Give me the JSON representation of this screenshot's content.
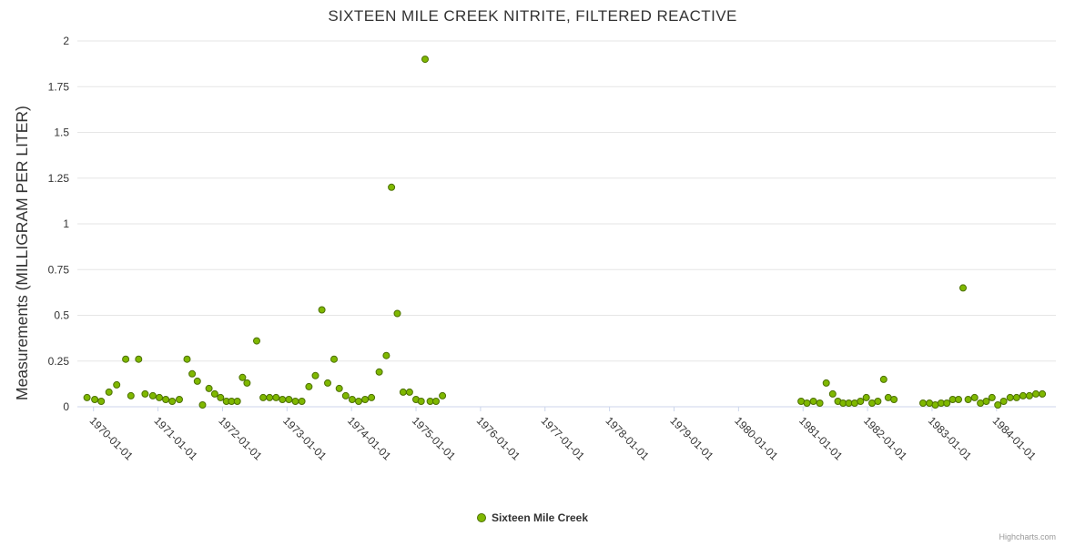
{
  "title": "SIXTEEN MILE CREEK NITRITE, FILTERED REACTIVE",
  "credit": "Highcharts.com",
  "legend": {
    "label": "Sixteen Mile Creek"
  },
  "chart_data": {
    "type": "scatter",
    "title": "SIXTEEN MILE CREEK NITRITE, FILTERED REACTIVE",
    "xlabel": "",
    "ylabel": "Measurements (MILLIGRAM PER LITER)",
    "xlim": [
      1969.75,
      1984.92
    ],
    "ylim": [
      0,
      2
    ],
    "grid": "horizontal",
    "legend_position": "bottom-center",
    "y_ticks": [
      0,
      0.25,
      0.5,
      0.75,
      1,
      1.25,
      1.5,
      1.75,
      2
    ],
    "x_tick_years": [
      1970,
      1971,
      1972,
      1973,
      1974,
      1975,
      1976,
      1977,
      1978,
      1979,
      1980,
      1981,
      1982,
      1983,
      1984
    ],
    "x_tick_labels": [
      "1970-01-01",
      "1971-01-01",
      "1972-01-01",
      "1973-01-01",
      "1974-01-01",
      "1975-01-01",
      "1976-01-01",
      "1977-01-01",
      "1978-01-01",
      "1979-01-01",
      "1980-01-01",
      "1981-01-01",
      "1982-01-01",
      "1983-01-01",
      "1984-01-01"
    ],
    "series": [
      {
        "name": "Sixteen Mile Creek",
        "color": "#7fb800",
        "marker_line_color": "#4c7000",
        "points": [
          [
            1969.9,
            0.05
          ],
          [
            1970.02,
            0.04
          ],
          [
            1970.12,
            0.03
          ],
          [
            1970.24,
            0.08
          ],
          [
            1970.36,
            0.12
          ],
          [
            1970.5,
            0.26
          ],
          [
            1970.58,
            0.06
          ],
          [
            1970.7,
            0.26
          ],
          [
            1970.8,
            0.07
          ],
          [
            1970.92,
            0.06
          ],
          [
            1971.02,
            0.05
          ],
          [
            1971.12,
            0.04
          ],
          [
            1971.22,
            0.03
          ],
          [
            1971.33,
            0.04
          ],
          [
            1971.45,
            0.26
          ],
          [
            1971.53,
            0.18
          ],
          [
            1971.61,
            0.14
          ],
          [
            1971.69,
            0.01
          ],
          [
            1971.79,
            0.1
          ],
          [
            1971.88,
            0.07
          ],
          [
            1971.97,
            0.05
          ],
          [
            1972.06,
            0.03
          ],
          [
            1972.14,
            0.03
          ],
          [
            1972.23,
            0.03
          ],
          [
            1972.31,
            0.16
          ],
          [
            1972.38,
            0.13
          ],
          [
            1972.53,
            0.36
          ],
          [
            1972.63,
            0.05
          ],
          [
            1972.73,
            0.05
          ],
          [
            1972.83,
            0.05
          ],
          [
            1972.93,
            0.04
          ],
          [
            1973.03,
            0.04
          ],
          [
            1973.13,
            0.03
          ],
          [
            1973.23,
            0.03
          ],
          [
            1973.34,
            0.11
          ],
          [
            1973.44,
            0.17
          ],
          [
            1973.54,
            0.53
          ],
          [
            1973.63,
            0.13
          ],
          [
            1973.73,
            0.26
          ],
          [
            1973.81,
            0.1
          ],
          [
            1973.91,
            0.06
          ],
          [
            1974.01,
            0.04
          ],
          [
            1974.11,
            0.03
          ],
          [
            1974.21,
            0.04
          ],
          [
            1974.31,
            0.05
          ],
          [
            1974.43,
            0.19
          ],
          [
            1974.54,
            0.28
          ],
          [
            1974.62,
            1.2
          ],
          [
            1974.71,
            0.51
          ],
          [
            1974.8,
            0.08
          ],
          [
            1974.9,
            0.08
          ],
          [
            1975.0,
            0.04
          ],
          [
            1975.08,
            0.03
          ],
          [
            1975.14,
            1.9
          ],
          [
            1975.22,
            0.03
          ],
          [
            1975.31,
            0.03
          ],
          [
            1975.41,
            0.06
          ],
          [
            1980.97,
            0.03
          ],
          [
            1981.06,
            0.02
          ],
          [
            1981.16,
            0.03
          ],
          [
            1981.26,
            0.02
          ],
          [
            1981.36,
            0.13
          ],
          [
            1981.46,
            0.07
          ],
          [
            1981.54,
            0.03
          ],
          [
            1981.62,
            0.02
          ],
          [
            1981.71,
            0.02
          ],
          [
            1981.8,
            0.02
          ],
          [
            1981.89,
            0.03
          ],
          [
            1981.98,
            0.05
          ],
          [
            1982.07,
            0.02
          ],
          [
            1982.16,
            0.03
          ],
          [
            1982.25,
            0.15
          ],
          [
            1982.32,
            0.05
          ],
          [
            1982.41,
            0.04
          ],
          [
            1982.86,
            0.02
          ],
          [
            1982.96,
            0.02
          ],
          [
            1983.05,
            0.01
          ],
          [
            1983.14,
            0.02
          ],
          [
            1983.23,
            0.02
          ],
          [
            1983.32,
            0.04
          ],
          [
            1983.41,
            0.04
          ],
          [
            1983.48,
            0.65
          ],
          [
            1983.56,
            0.04
          ],
          [
            1983.66,
            0.05
          ],
          [
            1983.75,
            0.02
          ],
          [
            1983.84,
            0.03
          ],
          [
            1983.93,
            0.05
          ],
          [
            1984.02,
            0.01
          ],
          [
            1984.11,
            0.03
          ],
          [
            1984.21,
            0.05
          ],
          [
            1984.31,
            0.05
          ],
          [
            1984.41,
            0.06
          ],
          [
            1984.51,
            0.06
          ],
          [
            1984.61,
            0.07
          ],
          [
            1984.71,
            0.07
          ]
        ]
      }
    ],
    "colors": {
      "gridline": "#e6e6e6",
      "axis_line": "#ccd6eb",
      "tick_label": "#333333",
      "title": "#333333"
    }
  }
}
